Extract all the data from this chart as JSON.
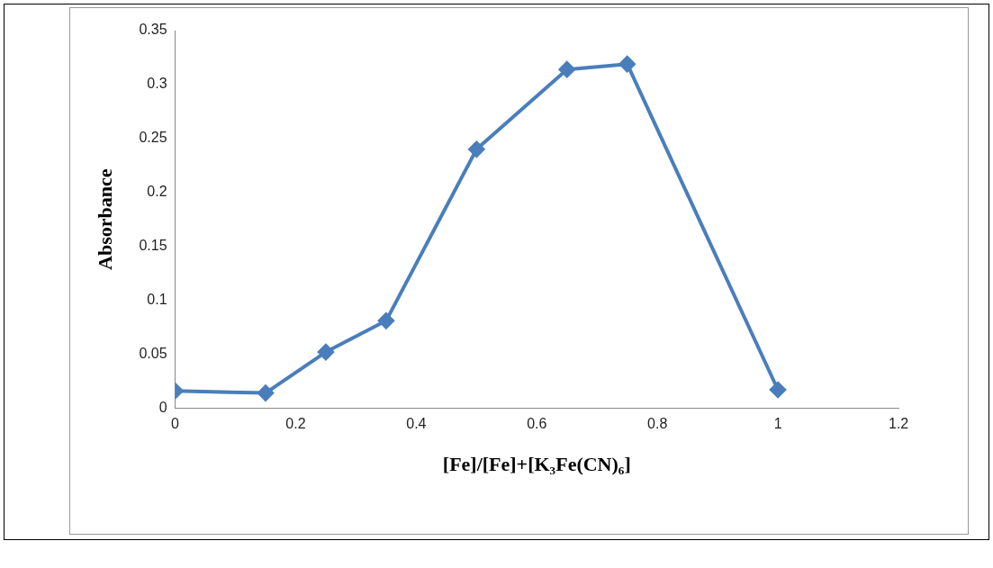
{
  "chart_data": {
    "type": "line",
    "xlabel": "[Fe]/[Fe]+[K₃Fe(CN)₆]",
    "ylabel": "Absorbance",
    "x": [
      0,
      0.15,
      0.25,
      0.35,
      0.5,
      0.65,
      0.75,
      1
    ],
    "values": [
      0.016,
      0.014,
      0.052,
      0.081,
      0.24,
      0.314,
      0.319,
      0.017
    ],
    "color": "#4a7ebb",
    "marker": "diamond",
    "xlim": [
      0,
      1.2
    ],
    "xticks": [
      0,
      0.2,
      0.4,
      0.6,
      0.8,
      1,
      1.2
    ],
    "ylim": [
      0,
      0.35
    ],
    "yticks": [
      0,
      0.05,
      0.1,
      0.15,
      0.2,
      0.25,
      0.3,
      0.35
    ]
  }
}
